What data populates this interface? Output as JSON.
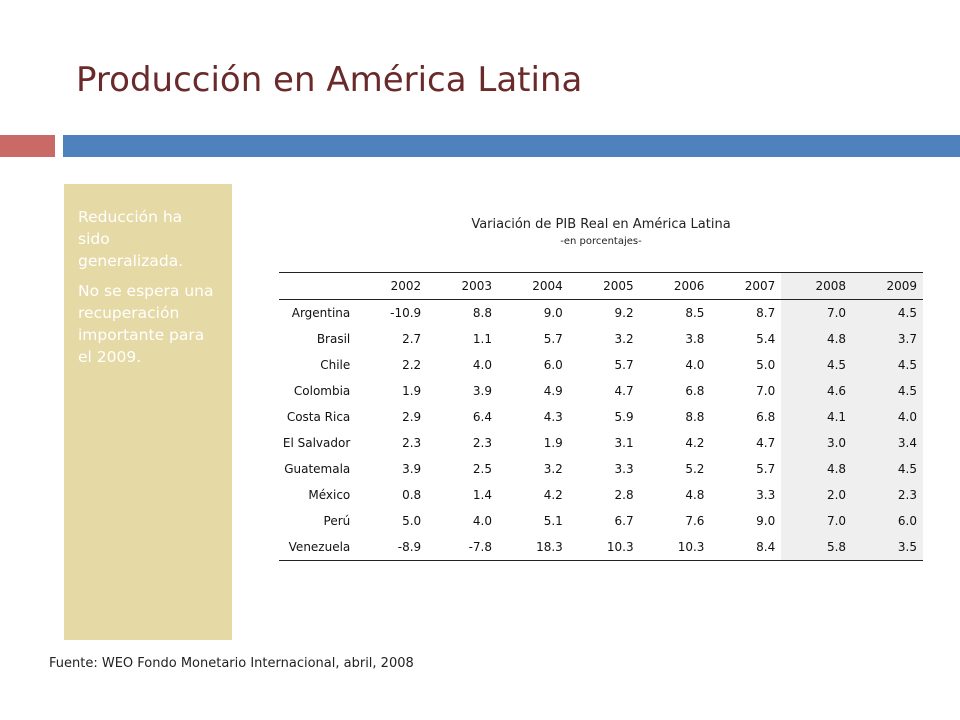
{
  "slide": {
    "title": "Producción en América Latina",
    "colors": {
      "title": "#6b2a2a",
      "accent_red": "#c96a66",
      "accent_blue": "#4f81bd",
      "sidebar": "#e5d9a6"
    }
  },
  "sidebar": {
    "paragraphs": [
      "Reducción ha sido generalizada.",
      "No se espera una recuperación importante para el 2009."
    ]
  },
  "table": {
    "title": "Variación de PIB Real en América Latina",
    "subtitle": "-en porcentajes-",
    "years": [
      "2002",
      "2003",
      "2004",
      "2005",
      "2006",
      "2007",
      "2008",
      "2009"
    ],
    "rows": [
      {
        "country": "Argentina",
        "values": [
          "-10.9",
          "8.8",
          "9.0",
          "9.2",
          "8.5",
          "8.7",
          "7.0",
          "4.5"
        ]
      },
      {
        "country": "Brasil",
        "values": [
          "2.7",
          "1.1",
          "5.7",
          "3.2",
          "3.8",
          "5.4",
          "4.8",
          "3.7"
        ]
      },
      {
        "country": "Chile",
        "values": [
          "2.2",
          "4.0",
          "6.0",
          "5.7",
          "4.0",
          "5.0",
          "4.5",
          "4.5"
        ]
      },
      {
        "country": "Colombia",
        "values": [
          "1.9",
          "3.9",
          "4.9",
          "4.7",
          "6.8",
          "7.0",
          "4.6",
          "4.5"
        ]
      },
      {
        "country": "Costa Rica",
        "values": [
          "2.9",
          "6.4",
          "4.3",
          "5.9",
          "8.8",
          "6.8",
          "4.1",
          "4.0"
        ]
      },
      {
        "country": "El Salvador",
        "values": [
          "2.3",
          "2.3",
          "1.9",
          "3.1",
          "4.2",
          "4.7",
          "3.0",
          "3.4"
        ]
      },
      {
        "country": "Guatemala",
        "values": [
          "3.9",
          "2.5",
          "3.2",
          "3.3",
          "5.2",
          "5.7",
          "4.8",
          "4.5"
        ]
      },
      {
        "country": "México",
        "values": [
          "0.8",
          "1.4",
          "4.2",
          "2.8",
          "4.8",
          "3.3",
          "2.0",
          "2.3"
        ]
      },
      {
        "country": "Perú",
        "values": [
          "5.0",
          "4.0",
          "5.1",
          "6.7",
          "7.6",
          "9.0",
          "7.0",
          "6.0"
        ]
      },
      {
        "country": "Venezuela",
        "values": [
          "-8.9",
          "-7.8",
          "18.3",
          "10.3",
          "10.3",
          "8.4",
          "5.8",
          "3.5"
        ]
      }
    ]
  },
  "source": "Fuente: WEO Fondo Monetario Internacional, abril, 2008"
}
